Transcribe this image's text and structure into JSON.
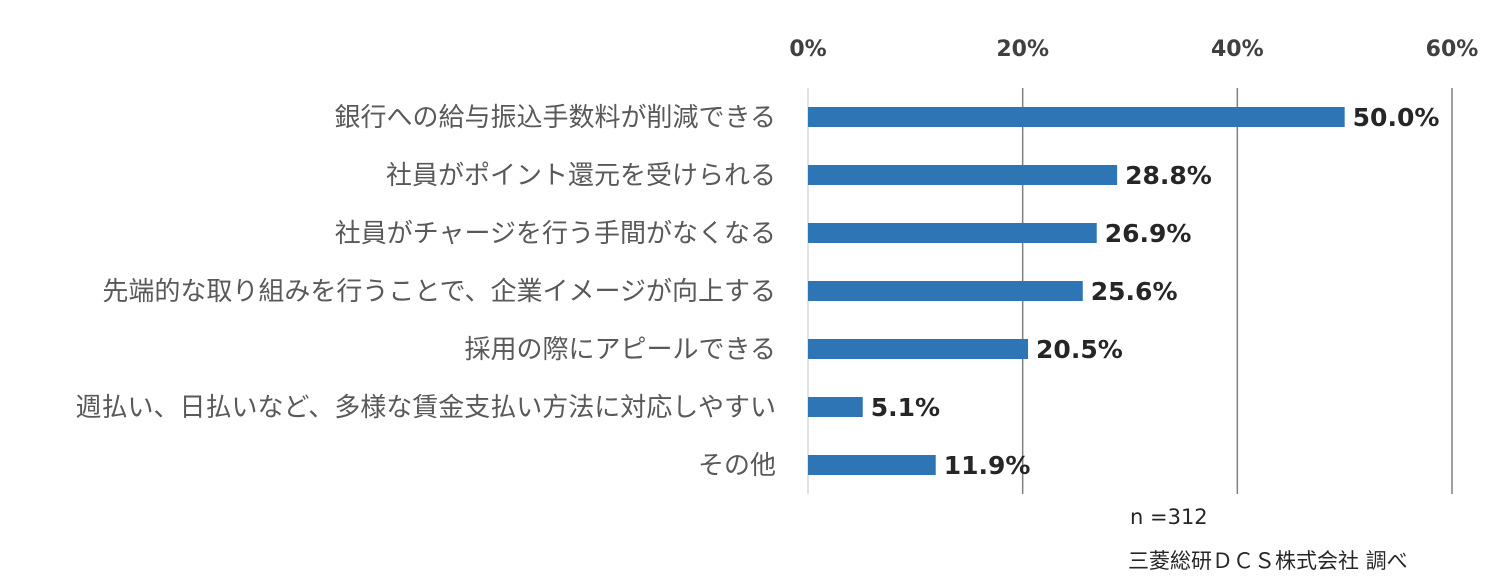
{
  "chart_data": {
    "type": "bar",
    "orientation": "horizontal",
    "title": "",
    "xlabel": "",
    "ylabel": "",
    "xlim": [
      0,
      60
    ],
    "x_ticks": [
      {
        "value": 0,
        "label": "0%"
      },
      {
        "value": 20,
        "label": "20%"
      },
      {
        "value": 40,
        "label": "40%"
      },
      {
        "value": 60,
        "label": "60%"
      }
    ],
    "grid": true,
    "bar_color": "#2E75B6",
    "grid_color": "#808080",
    "categories": [
      "銀行への給与振込手数料が削減できる",
      "社員がポイント還元を受けられる",
      "社員がチャージを行う手間がなくなる",
      "先端的な取り組みを行うことで、企業イメージが向上する",
      "採用の際にアピールできる",
      "週払い、日払いなど、多様な賃金支払い方法に対応しやすい",
      "その他"
    ],
    "values": [
      50.0,
      28.8,
      26.9,
      25.6,
      20.5,
      5.1,
      11.9
    ],
    "value_labels": [
      "50.0%",
      "28.8%",
      "26.9%",
      "25.6%",
      "20.5%",
      "5.1%",
      "11.9%"
    ]
  },
  "notes": {
    "sample_size": "n =312",
    "source": "三菱総研ＤＣＳ株式会社 調べ"
  }
}
